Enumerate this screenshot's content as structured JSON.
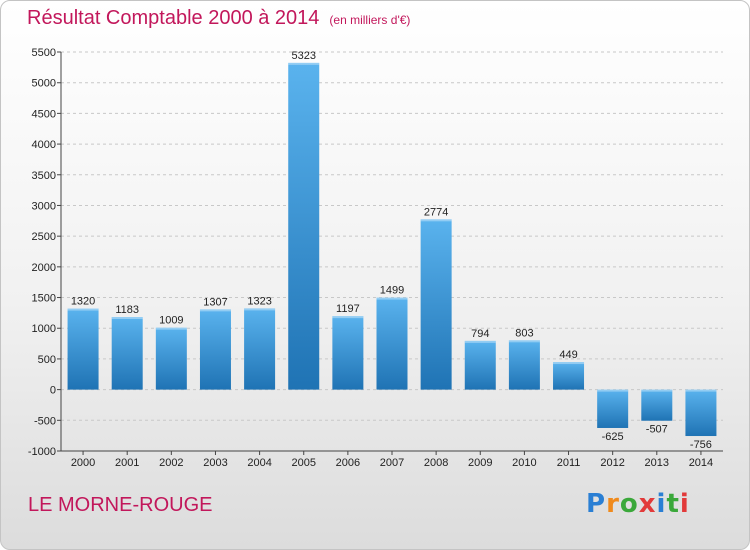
{
  "chart_data": {
    "type": "bar",
    "title": "Résultat Comptable 2000 à 2014",
    "subtitle": "(en milliers d'€)",
    "categories": [
      "2000",
      "2001",
      "2002",
      "2003",
      "2004",
      "2005",
      "2006",
      "2007",
      "2008",
      "2009",
      "2010",
      "2011",
      "2012",
      "2013",
      "2014"
    ],
    "values": [
      1320,
      1183,
      1009,
      1307,
      1323,
      5323,
      1197,
      1499,
      2774,
      794,
      803,
      449,
      -625,
      -507,
      -756
    ],
    "value_labels": [
      "1320",
      "1183",
      "1009",
      "1307",
      "1323",
      "5323",
      "1197",
      "1499",
      "2774",
      "794",
      "803",
      "449",
      "-625",
      "-507",
      "-756"
    ],
    "ylim": [
      -1000,
      5500
    ],
    "yticks": [
      -1000,
      -500,
      0,
      500,
      1000,
      1500,
      2000,
      2500,
      3000,
      3500,
      4000,
      4500,
      5000,
      5500
    ],
    "ytick_labels": [
      "-1000",
      "-500",
      "0",
      "500",
      "1000",
      "1500",
      "2000",
      "2500",
      "3000",
      "3500",
      "4000",
      "4500",
      "5000",
      "5500"
    ],
    "grid": true,
    "bar_color_light": "#5ab3ee",
    "bar_color_dark": "#1f73b4",
    "xlabel": "",
    "ylabel": ""
  },
  "footer": {
    "place": "LE MORNE-ROUGE",
    "logo_letters": [
      "P",
      "r",
      "o",
      "x",
      "i",
      "t",
      "i"
    ],
    "logo_colors": [
      "#2a7fd4",
      "#f08a1c",
      "#3aa83a",
      "#e23a3a",
      "#2a7fd4",
      "#3aa83a",
      "#e23a3a"
    ]
  },
  "colors": {
    "title": "#c2175b",
    "grid": "#c8c8c8"
  }
}
